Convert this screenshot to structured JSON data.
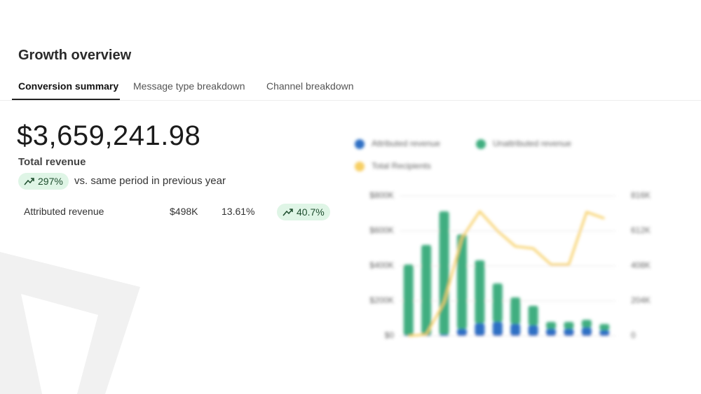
{
  "header": {
    "title": "Growth overview"
  },
  "tabs": [
    "Conversion summary",
    "Message type breakdown",
    "Channel breakdown"
  ],
  "summary": {
    "amount": "$3,659,241.98",
    "label": "Total revenue",
    "change": "297%",
    "comparison": "vs. same period in previous year"
  },
  "breakdown": {
    "label": "Attributed revenue",
    "amount": "$498K",
    "share": "13.61%",
    "change": "40.7%"
  },
  "chart_data": {
    "type": "bar",
    "stacked": true,
    "categories": [
      null,
      null,
      null,
      null,
      null,
      null,
      null,
      null,
      null,
      null,
      null,
      null
    ],
    "series": [
      {
        "name": "Attributed revenue",
        "color": "#2f6fc4",
        "values": [
          4000,
          4000,
          8000,
          40000,
          72000,
          80000,
          68000,
          60000,
          40000,
          40000,
          48000,
          32000
        ]
      },
      {
        "name": "Unattributed revenue",
        "color": "#3fae80",
        "values": [
          404000,
          516000,
          704000,
          540000,
          360000,
          220000,
          152000,
          112000,
          40000,
          40000,
          44000,
          36000
        ]
      },
      {
        "name": "Total Recipients",
        "color": "#f7cf63",
        "type": "line",
        "axis": "y2",
        "values": [
          0,
          8000,
          196000,
          571000,
          726000,
          612000,
          522000,
          510000,
          416000,
          416000,
          722000,
          685000
        ]
      }
    ],
    "ylim": [
      0,
      800000
    ],
    "yticks": [
      {
        "value": 0,
        "label": "$0"
      },
      {
        "value": 200000,
        "label": "$200K"
      },
      {
        "value": 400000,
        "label": "$400K"
      },
      {
        "value": 600000,
        "label": "$600K"
      },
      {
        "value": 800000,
        "label": "$800K"
      }
    ],
    "y2lim": [
      0,
      816000
    ],
    "y2ticks": [
      0,
      {
        "value": 204000,
        "label": "204K"
      },
      {
        "value": 408000,
        "label": "408K"
      },
      {
        "value": 612000,
        "label": "612K"
      },
      {
        "value": 816000,
        "label": "816K"
      }
    ],
    "grid": true,
    "blurred": true
  }
}
